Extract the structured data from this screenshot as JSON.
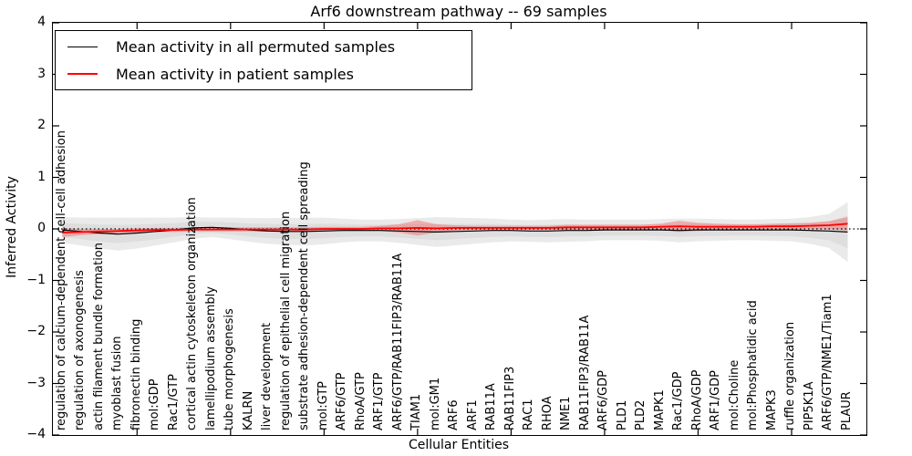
{
  "title": "Arf6 downstream pathway -- 69 samples",
  "axes": {
    "xlabel": "Cellular Entities",
    "ylabel": "Inferred Activity",
    "yticks": [
      4,
      3,
      2,
      1,
      0,
      -1,
      -2,
      -3,
      -4
    ]
  },
  "legend": {
    "items": [
      {
        "label": "Mean activity in all permuted samples",
        "color": "#000000",
        "thickness": 1.5
      },
      {
        "label": "Mean activity in patient samples",
        "color": "#ff0000",
        "thickness": 2
      }
    ]
  },
  "colors": {
    "permuted_line": "#000000",
    "permuted_band_outer": "#eaeaea",
    "permuted_band_inner": "#dedede",
    "patient_line": "#ff0000",
    "patient_band": "#ff0000",
    "zero_line": "#000000",
    "spine": "#000000"
  },
  "chart_data": {
    "type": "line",
    "title": "Arf6 downstream pathway -- 69 samples",
    "xlabel": "Cellular Entities",
    "ylabel": "Inferred Activity",
    "ylim": [
      -4,
      4
    ],
    "grid": false,
    "legend_position": "upper left",
    "zero_line_dotted": true,
    "major_xtick_indices": [
      4,
      9,
      14,
      19,
      24,
      29,
      34,
      39
    ],
    "categories": [
      "regulation of calcium-dependent cell-cell adhesion",
      "regulation of axonogenesis",
      "actin filament bundle formation",
      "myoblast fusion",
      "fibronectin binding",
      "mol:GDP",
      "Rac1/GTP",
      "cortical actin cytoskeleton organization",
      "lamellipodium assembly",
      "tube morphogenesis",
      "KALRN",
      "liver development",
      "regulation of epithelial cell migration",
      "substrate adhesion-dependent cell spreading",
      "mol:GTP",
      "ARF6/GTP",
      "RhoA/GTP",
      "ARF1/GTP",
      "ARF6/GTP/RAB11FIP3/RAB11A",
      "TIAM1",
      "mol:GM1",
      "ARF6",
      "ARF1",
      "RAB11A",
      "RAB11FIP3",
      "RAC1",
      "RHOA",
      "NME1",
      "RAB11FIP3/RAB11A",
      "ARF6/GDP",
      "PLD1",
      "PLD2",
      "MAPK1",
      "Rac1/GDP",
      "RhoA/GDP",
      "ARF1/GDP",
      "mol:Choline",
      "mol:Phosphatidic acid",
      "MAPK3",
      "ruffle organization",
      "PIP5K1A",
      "ARF6/GTP/NME1/Tiam1",
      "PLAUR"
    ],
    "series": [
      {
        "name": "Mean activity in all permuted samples",
        "color": "#000000",
        "values": [
          -0.02,
          -0.05,
          -0.08,
          -0.1,
          -0.08,
          -0.05,
          -0.02,
          0.02,
          0.03,
          0.01,
          -0.02,
          -0.04,
          -0.05,
          -0.05,
          -0.04,
          -0.03,
          -0.03,
          -0.03,
          -0.04,
          -0.05,
          -0.06,
          -0.05,
          -0.04,
          -0.03,
          -0.03,
          -0.04,
          -0.04,
          -0.03,
          -0.03,
          -0.02,
          -0.02,
          -0.02,
          -0.02,
          -0.03,
          -0.02,
          -0.02,
          -0.02,
          -0.02,
          -0.02,
          -0.02,
          -0.03,
          -0.04,
          -0.06
        ],
        "band_halfwidth": [
          0.25,
          0.27,
          0.3,
          0.32,
          0.3,
          0.27,
          0.24,
          0.21,
          0.19,
          0.21,
          0.23,
          0.25,
          0.26,
          0.27,
          0.26,
          0.23,
          0.21,
          0.21,
          0.23,
          0.26,
          0.29,
          0.27,
          0.25,
          0.23,
          0.21,
          0.21,
          0.22,
          0.22,
          0.21,
          0.2,
          0.2,
          0.2,
          0.21,
          0.23,
          0.22,
          0.21,
          0.2,
          0.2,
          0.21,
          0.22,
          0.26,
          0.33,
          0.58
        ]
      },
      {
        "name": "Mean activity in patient samples",
        "color": "#ff0000",
        "values": [
          -0.07,
          -0.06,
          -0.05,
          -0.04,
          -0.03,
          -0.02,
          -0.02,
          -0.01,
          -0.01,
          -0.01,
          -0.01,
          -0.01,
          -0.01,
          -0.01,
          0.0,
          0.0,
          0.0,
          0.01,
          0.01,
          0.02,
          0.01,
          0.02,
          0.02,
          0.02,
          0.02,
          0.02,
          0.02,
          0.03,
          0.03,
          0.03,
          0.03,
          0.03,
          0.04,
          0.05,
          0.04,
          0.04,
          0.04,
          0.04,
          0.05,
          0.05,
          0.06,
          0.07,
          0.1
        ],
        "band_halfwidth": [
          0.09,
          0.06,
          0.05,
          0.04,
          0.04,
          0.04,
          0.04,
          0.04,
          0.04,
          0.04,
          0.04,
          0.04,
          0.04,
          0.04,
          0.04,
          0.04,
          0.04,
          0.05,
          0.08,
          0.15,
          0.08,
          0.05,
          0.04,
          0.04,
          0.04,
          0.04,
          0.04,
          0.05,
          0.05,
          0.05,
          0.05,
          0.05,
          0.06,
          0.11,
          0.08,
          0.06,
          0.05,
          0.05,
          0.05,
          0.06,
          0.06,
          0.08,
          0.13
        ]
      }
    ]
  }
}
